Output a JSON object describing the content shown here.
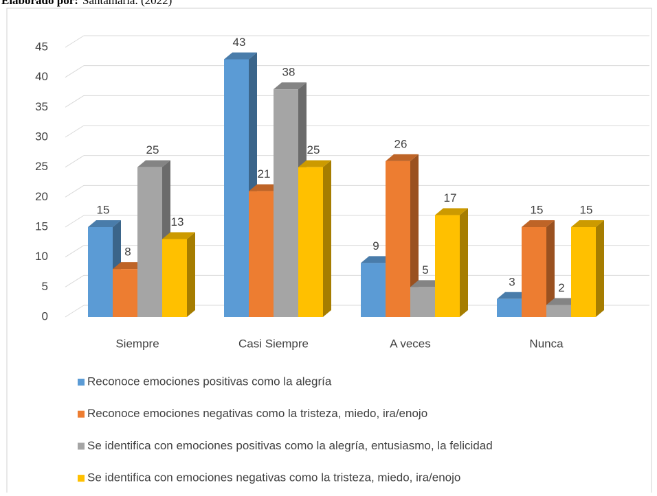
{
  "caption": {
    "label": "Elaborado por:",
    "text": "Santamaría. (2022)"
  },
  "chart_data": {
    "type": "bar3d",
    "categories": [
      "Siempre",
      "Casi Siempre",
      "A veces",
      "Nunca"
    ],
    "series": [
      {
        "name": "Reconoce emociones positivas como la alegría",
        "color": "#5b9bd5",
        "values": [
          15,
          43,
          9,
          3
        ]
      },
      {
        "name": "Reconoce emociones negativas como la tristeza, miedo, ira/enojo",
        "color": "#ed7d31",
        "values": [
          8,
          21,
          26,
          15
        ]
      },
      {
        "name": "Se identifica con emociones positivas como la alegría, entusiasmo, la felicidad",
        "color": "#a5a5a5",
        "values": [
          25,
          38,
          5,
          2
        ]
      },
      {
        "name": "Se identifica con emociones negativas como la tristeza, miedo, ira/enojo",
        "color": "#ffc000",
        "values": [
          13,
          25,
          17,
          15
        ]
      }
    ],
    "ylim": [
      0,
      45
    ],
    "yticks": [
      0,
      5,
      10,
      15,
      20,
      25,
      30,
      35,
      40,
      45
    ],
    "grid": true,
    "legend": "bottom"
  }
}
